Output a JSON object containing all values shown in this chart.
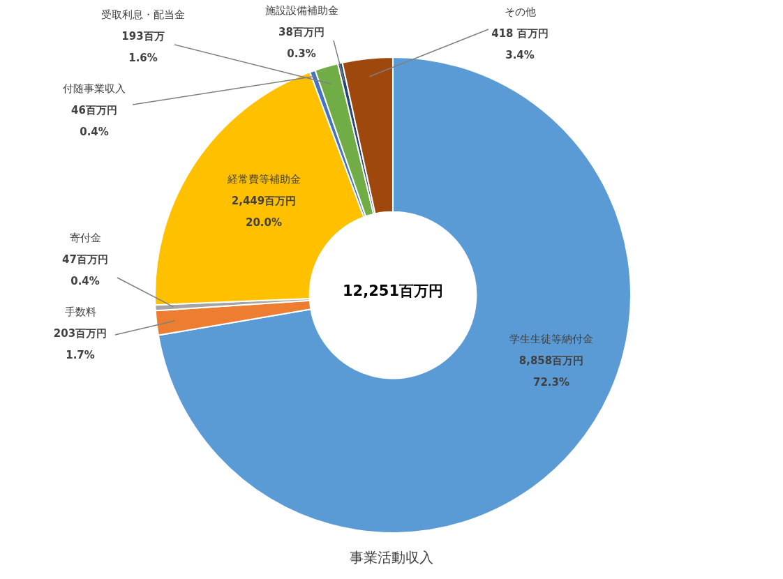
{
  "chart_data": {
    "type": "donut",
    "title": "事業活動収入",
    "categories": [
      "学生生徒等納付金",
      "手数料",
      "寄付金",
      "経常費等補助金",
      "付随事業収入",
      "受取利息・配当金",
      "施設設備補助金",
      "その他"
    ],
    "values": [
      8858,
      203,
      47,
      2449,
      46,
      193,
      38,
      418
    ],
    "value_labels": [
      "8,858百万円\n72.3%",
      "203百万円\n1.7%",
      "47百万円\n0.4%",
      "2,449百万円\n20.0%",
      "46百万円\n0.4%",
      "193百万\n1.6%",
      "38百万円\n0.3%",
      "418 百万円\n3.4%"
    ],
    "colors": [
      "#5b9bd5",
      "#ed7d31",
      "#a5a5a5",
      "#ffc000",
      "#4472c4",
      "#70ad47",
      "#264478",
      "#9e480e"
    ],
    "annotations": [
      "12,251百万円"
    ]
  }
}
